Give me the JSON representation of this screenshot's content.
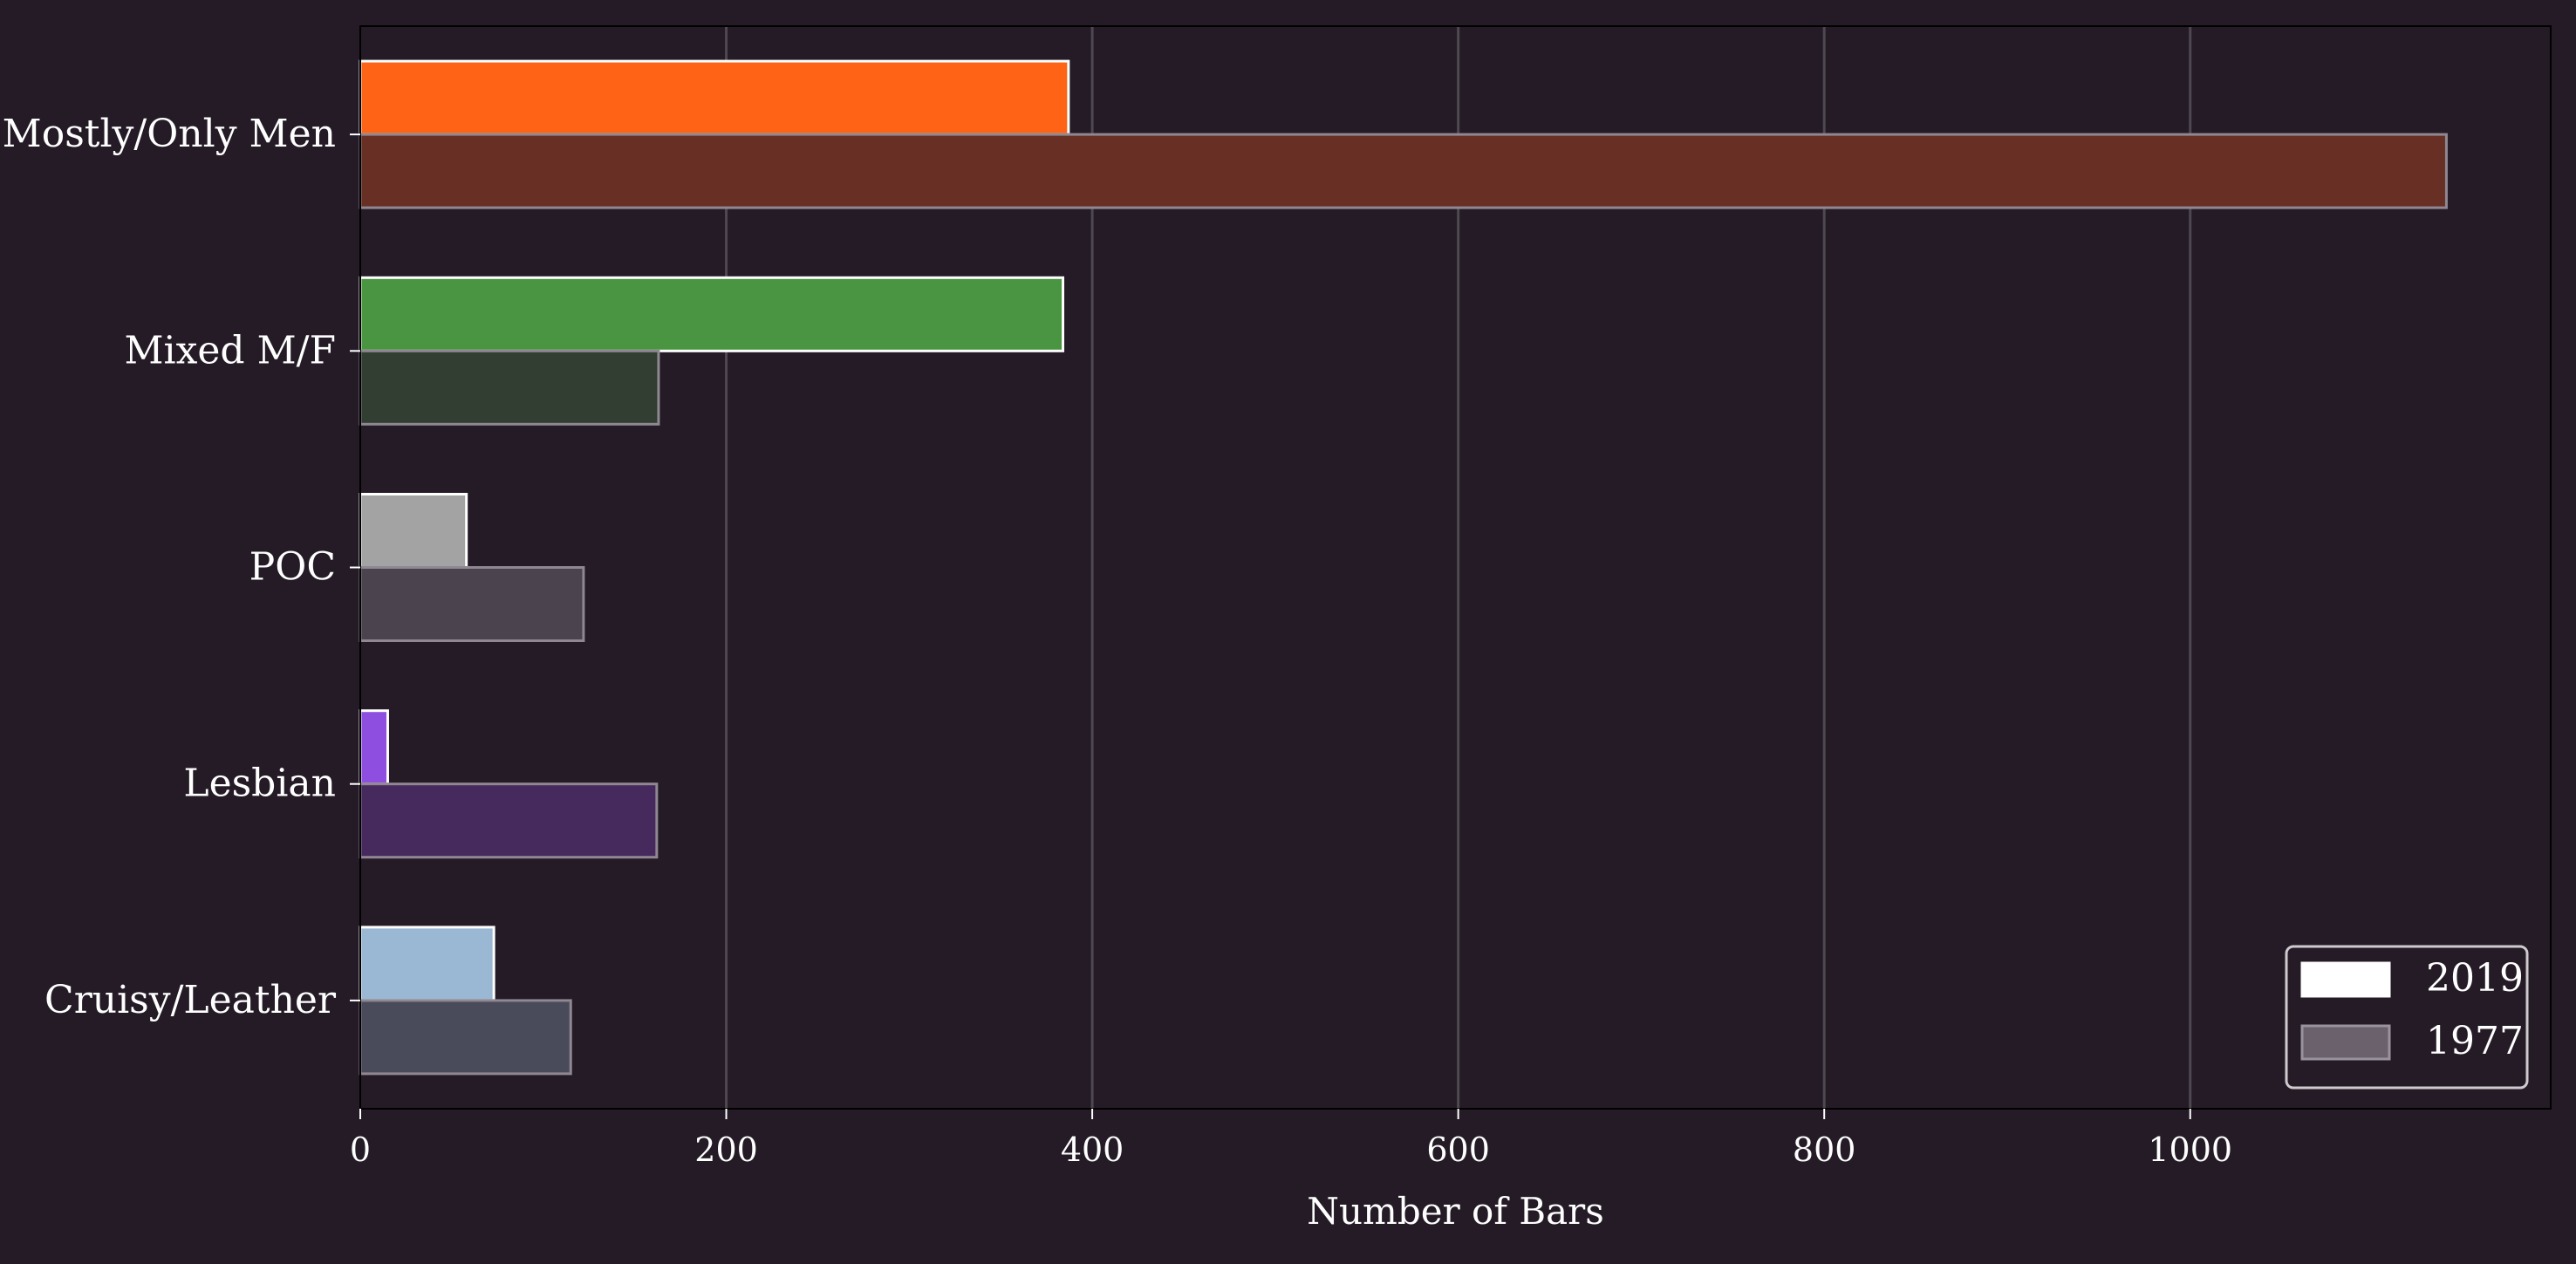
{
  "chart_data": {
    "type": "bar",
    "orientation": "horizontal",
    "categories": [
      "Mostly/Only Men",
      "Mixed M/F",
      "POC",
      "Lesbian",
      "Cruisy/Leather"
    ],
    "series": [
      {
        "name": "2019",
        "values": [
          387,
          384,
          58,
          15,
          73
        ],
        "colors": [
          "#ff6316",
          "#4a9541",
          "#a3a3a3",
          "#8e4ee0",
          "#9ab8d3"
        ],
        "edge_color": "#ffffff"
      },
      {
        "name": "1977",
        "values": [
          1140,
          163,
          122,
          162,
          115
        ],
        "colors": [
          "#682f24",
          "#323e31",
          "#4b434d",
          "#462a5e",
          "#4a4b5a"
        ],
        "edge_color": "#8f8791"
      }
    ],
    "xlabel": "Number of Bars",
    "xlim": [
      0,
      1197
    ],
    "xticks": [
      0,
      200,
      400,
      600,
      800,
      1000
    ],
    "grid": "vertical",
    "legend": {
      "position": "bottom-right",
      "entries": [
        {
          "label": "2019",
          "color": "#ffffff",
          "edge": "#ffffff"
        },
        {
          "label": "1977",
          "color": "#6b616d",
          "edge": "#9a939c"
        }
      ]
    },
    "colors": {
      "background": "#241b26",
      "grid": "#4e4850",
      "text": "#ffffff"
    }
  }
}
